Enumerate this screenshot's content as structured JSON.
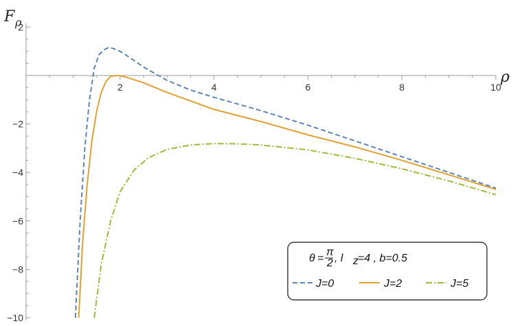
{
  "chart_data": {
    "type": "line",
    "xlabel": "ρ",
    "ylabel": "F",
    "ylabel_sub": "ρ",
    "xlim": [
      0,
      10
    ],
    "ylim": [
      -10,
      2
    ],
    "x_ticks": [
      2,
      4,
      6,
      8,
      10
    ],
    "y_ticks": [
      2,
      -2,
      -4,
      -6,
      -8,
      -10
    ],
    "grid": false,
    "legend_placement": "bottom-right",
    "legend_title": {
      "theta": "θ",
      "eq": "=",
      "frac_num": "π",
      "frac_den": "2",
      "params": ",  l",
      "sub": "z",
      "rest": "=4 ,  b=0.5"
    },
    "series": [
      {
        "name": "J=0",
        "color": "#5b84b8",
        "style": "dashed",
        "points": [
          [
            1.05,
            -10
          ],
          [
            1.15,
            -6.0
          ],
          [
            1.25,
            -3.0
          ],
          [
            1.35,
            -1.0
          ],
          [
            1.45,
            0.3
          ],
          [
            1.55,
            0.85
          ],
          [
            1.65,
            1.05
          ],
          [
            1.75,
            1.15
          ],
          [
            1.85,
            1.12
          ],
          [
            2.0,
            1.0
          ],
          [
            2.2,
            0.75
          ],
          [
            2.5,
            0.35
          ],
          [
            3.0,
            -0.2
          ],
          [
            3.5,
            -0.6
          ],
          [
            4.0,
            -0.9
          ],
          [
            5.0,
            -1.45
          ],
          [
            6.0,
            -2.05
          ],
          [
            7.0,
            -2.7
          ],
          [
            8.0,
            -3.35
          ],
          [
            9.0,
            -4.0
          ],
          [
            10.0,
            -4.65
          ]
        ]
      },
      {
        "name": "J=2",
        "color": "#e0a030",
        "style": "solid",
        "points": [
          [
            1.12,
            -10
          ],
          [
            1.2,
            -7.0
          ],
          [
            1.3,
            -4.5
          ],
          [
            1.4,
            -2.7
          ],
          [
            1.5,
            -1.5
          ],
          [
            1.6,
            -0.7
          ],
          [
            1.7,
            -0.25
          ],
          [
            1.8,
            -0.03
          ],
          [
            1.95,
            0.0
          ],
          [
            2.1,
            -0.05
          ],
          [
            2.5,
            -0.3
          ],
          [
            3.0,
            -0.7
          ],
          [
            3.5,
            -1.05
          ],
          [
            4.0,
            -1.4
          ],
          [
            5.0,
            -1.9
          ],
          [
            6.0,
            -2.45
          ],
          [
            7.0,
            -2.95
          ],
          [
            8.0,
            -3.5
          ],
          [
            9.0,
            -4.1
          ],
          [
            10.0,
            -4.7
          ]
        ]
      },
      {
        "name": "J=5",
        "color": "#9cbb3a",
        "style": "dashdot",
        "points": [
          [
            1.45,
            -10
          ],
          [
            1.6,
            -7.8
          ],
          [
            1.8,
            -6.0
          ],
          [
            2.0,
            -4.8
          ],
          [
            2.3,
            -3.9
          ],
          [
            2.6,
            -3.4
          ],
          [
            3.0,
            -3.05
          ],
          [
            3.5,
            -2.87
          ],
          [
            4.0,
            -2.81
          ],
          [
            4.5,
            -2.82
          ],
          [
            5.0,
            -2.87
          ],
          [
            6.0,
            -3.07
          ],
          [
            7.0,
            -3.42
          ],
          [
            8.0,
            -3.85
          ],
          [
            9.0,
            -4.35
          ],
          [
            10.0,
            -4.92
          ]
        ]
      }
    ]
  }
}
